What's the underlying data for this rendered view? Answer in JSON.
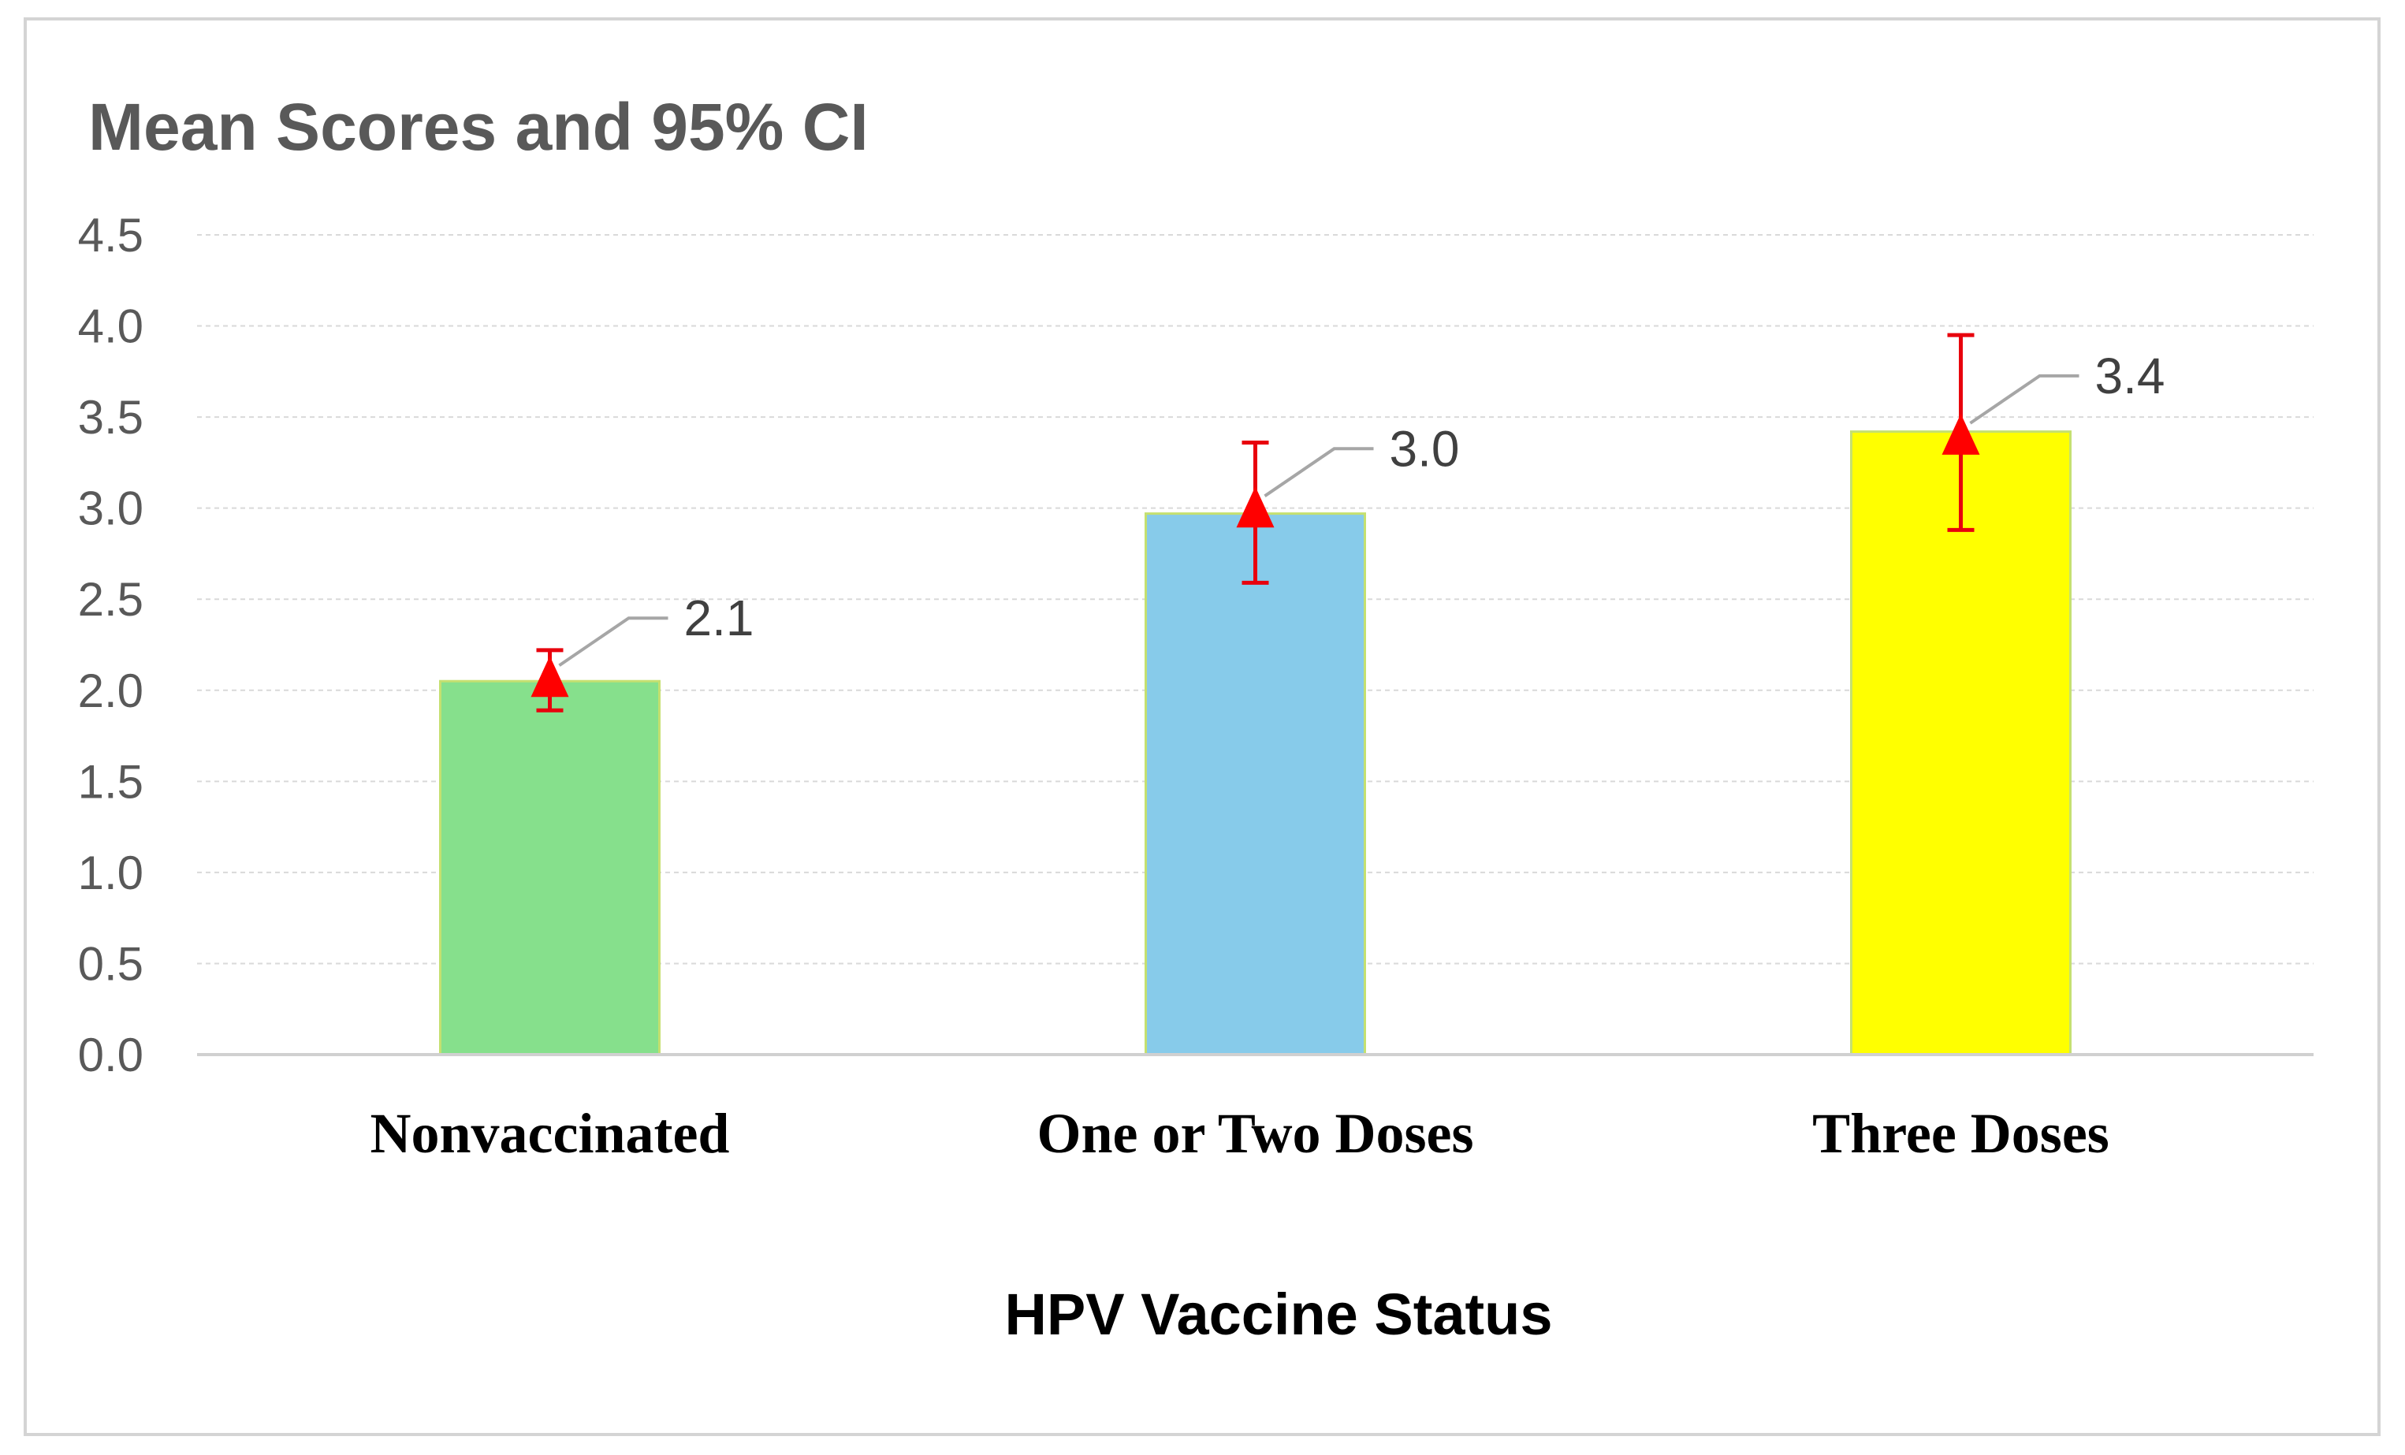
{
  "chart_data": {
    "type": "bar",
    "title": "Mean Scores and 95% CI",
    "xlabel": "HPV Vaccine Status",
    "ylabel": "",
    "ylim": [
      0,
      4.5
    ],
    "ytick_step": 0.5,
    "grid": true,
    "categories": [
      "Nonvaccinated",
      "One or Two Doses",
      "Three Doses"
    ],
    "values": [
      2.05,
      2.97,
      3.42
    ],
    "mean_markers": [
      2.05,
      2.98,
      3.38
    ],
    "ci_lower": [
      1.89,
      2.59,
      2.88
    ],
    "ci_upper": [
      2.22,
      3.36,
      3.95
    ],
    "data_labels": [
      "2.1",
      "3.0",
      "3.4"
    ],
    "bar_colors": [
      "#86E08C",
      "#87CBEA",
      "#FFFF00"
    ],
    "marker_color": "#FF0000",
    "errorbar_color": "#E8000D"
  }
}
